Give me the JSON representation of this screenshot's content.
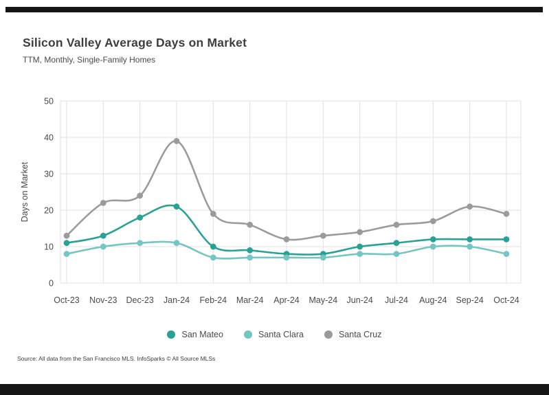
{
  "page": {
    "title": "Silicon Valley Average Days on Market",
    "subtitle": "TTM, Monthly, Single-Family Homes",
    "source": "Source:  All data from the San Francisco MLS. InfoSparks © All Source MLSs"
  },
  "colors": {
    "accent_bar": "#151515",
    "grid": "#e1e1e1",
    "axis_text": "#4a4a4a",
    "san_mateo": "#29a294",
    "santa_clara": "#74c6c2",
    "santa_cruz": "#9b9b9b"
  },
  "chart_data": {
    "type": "line",
    "title": "Silicon Valley Average Days on Market",
    "subtitle": "TTM, Monthly, Single-Family Homes",
    "x": [
      "Oct-23",
      "Nov-23",
      "Dec-23",
      "Jan-24",
      "Feb-24",
      "Mar-24",
      "Apr-24",
      "May-24",
      "Jun-24",
      "Jul-24",
      "Aug-24",
      "Sep-24",
      "Oct-24"
    ],
    "xlabel": "",
    "ylabel": "Days on Market",
    "ylim": [
      0,
      50
    ],
    "yticks": [
      0,
      10,
      20,
      30,
      40,
      50
    ],
    "grid": true,
    "legend_position": "bottom",
    "series": [
      {
        "name": "San Mateo",
        "color": "#29a294",
        "values": [
          11,
          13,
          18,
          21,
          10,
          9,
          8,
          8,
          10,
          11,
          12,
          12,
          12
        ]
      },
      {
        "name": "Santa Clara",
        "color": "#74c6c2",
        "values": [
          8,
          10,
          11,
          11,
          7,
          7,
          7,
          7,
          8,
          8,
          10,
          10,
          8
        ]
      },
      {
        "name": "Santa Cruz",
        "color": "#9b9b9b",
        "values": [
          13,
          22,
          24,
          39,
          19,
          16,
          12,
          13,
          14,
          16,
          17,
          21,
          19
        ]
      }
    ]
  }
}
